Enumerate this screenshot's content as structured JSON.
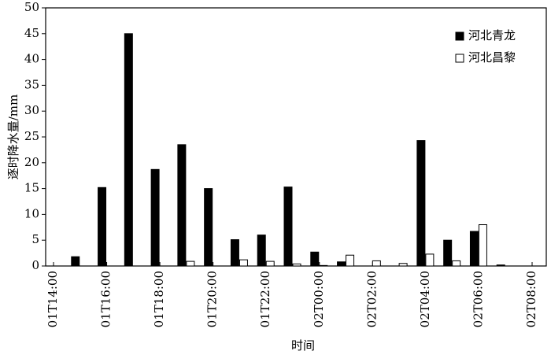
{
  "chart_data": {
    "type": "bar",
    "categories": [
      "01T14:00",
      null,
      "01T16:00",
      null,
      "01T18:00",
      null,
      "01T20:00",
      null,
      "01T22:00",
      null,
      "02T00:00",
      null,
      "02T02:00",
      null,
      "02T04:00",
      null,
      "02T06:00",
      null,
      "02T08:00"
    ],
    "series": [
      {
        "name": "河北青龙",
        "color": "#000000",
        "values": [
          0,
          1.8,
          15.2,
          45,
          18.7,
          23.5,
          15,
          5.1,
          6,
          15.3,
          2.7,
          0.8,
          0,
          0,
          24.3,
          5,
          6.7,
          0.2,
          0
        ]
      },
      {
        "name": "河北昌黎",
        "color": "#ffffff",
        "values": [
          0,
          0,
          0,
          0,
          0,
          0.9,
          0,
          1.2,
          0.9,
          0.4,
          0.1,
          2.1,
          1.0,
          0.5,
          2.3,
          1.0,
          8.0,
          0,
          0
        ]
      }
    ],
    "x_label": "时间",
    "y_label": "逐时降水量/mm",
    "ylim": [
      0,
      50
    ],
    "yticks": [
      0,
      5,
      10,
      15,
      20,
      25,
      30,
      35,
      40,
      45,
      50
    ],
    "legend": "upper right",
    "grid": false
  }
}
